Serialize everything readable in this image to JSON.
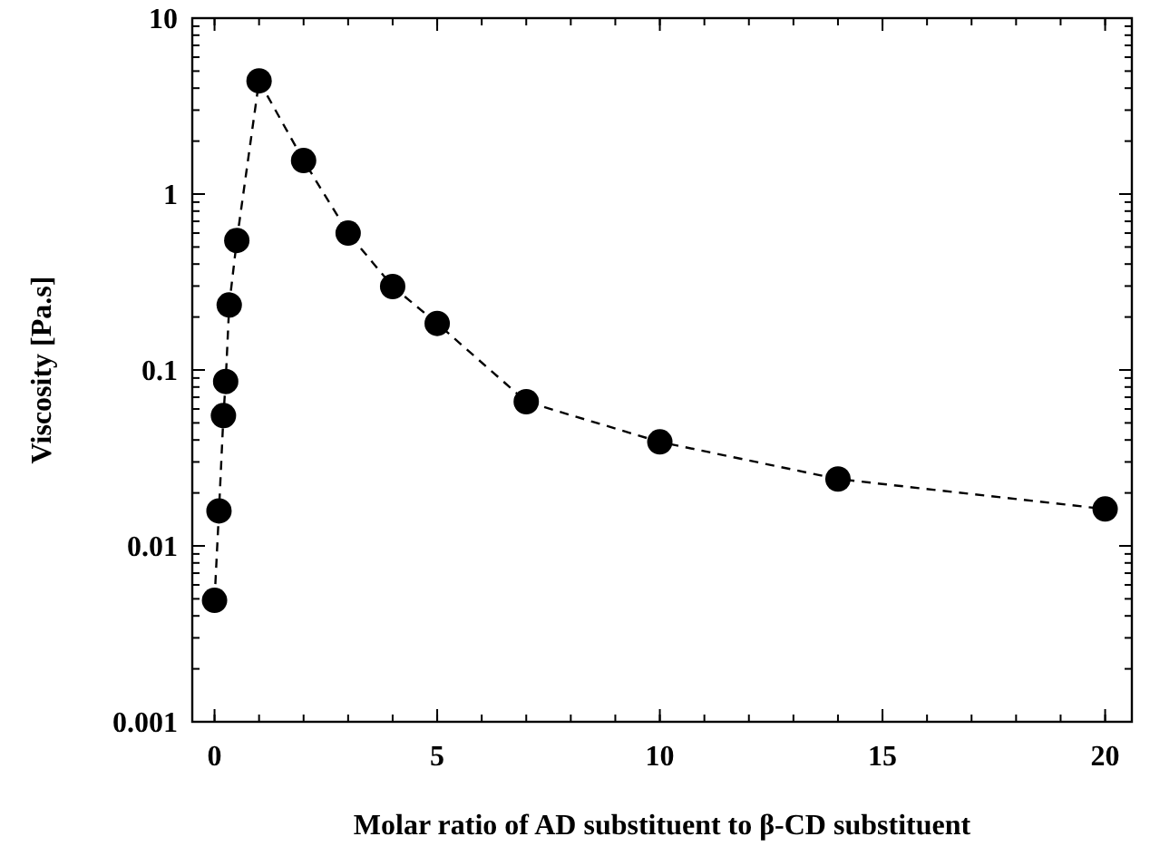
{
  "chart_data": {
    "type": "line",
    "xlabel": "Molar ratio of AD substituent to β-CD substituent",
    "ylabel": "Viscosity [Pa.s]",
    "log": "y",
    "marker": "circle",
    "line_style": "dashed",
    "grid": false,
    "xlim": [
      -0.5,
      20.6
    ],
    "xticks": [
      0,
      5,
      10,
      15,
      20
    ],
    "ylim": [
      0.001,
      10
    ],
    "yticks": [
      0.001,
      0.01,
      0.1,
      1,
      10
    ],
    "series": [
      {
        "color": "#000000",
        "x": [
          0,
          0.1,
          0.2,
          0.25,
          0.33,
          0.5,
          1,
          2,
          3,
          4,
          5,
          7,
          10,
          14,
          20
        ],
        "values": [
          0.0049,
          0.0158,
          0.055,
          0.086,
          0.234,
          0.545,
          4.4,
          1.55,
          0.6,
          0.298,
          0.184,
          0.066,
          0.039,
          0.024,
          0.0162
        ]
      }
    ]
  }
}
